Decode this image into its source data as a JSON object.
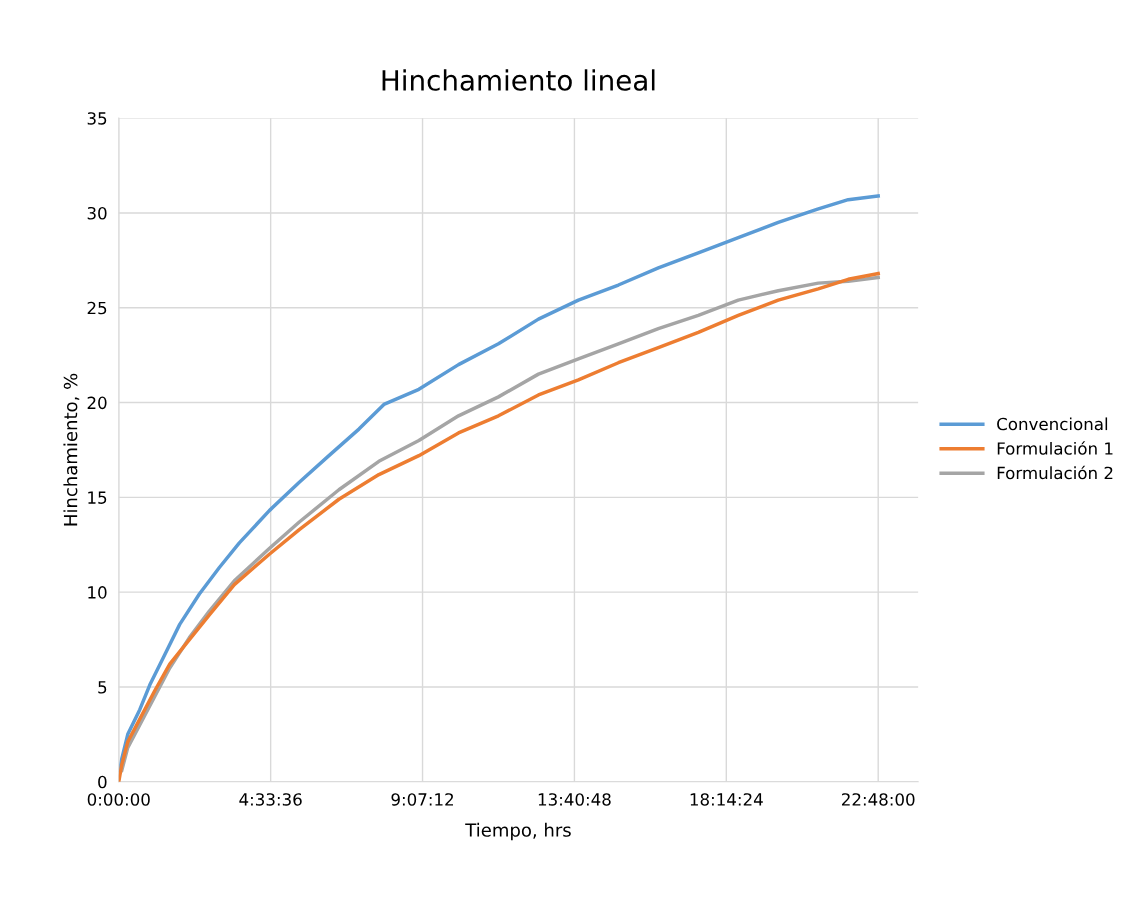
{
  "chart_data": {
    "type": "line",
    "title": "Hinchamiento lineal",
    "xlabel": "Tiempo, hrs",
    "ylabel": "Hinchamiento, %",
    "xlim": [
      0,
      24
    ],
    "xticks": [
      {
        "value": 0,
        "label": "0:00:00"
      },
      {
        "value": 4.56,
        "label": "4:33:36"
      },
      {
        "value": 9.12,
        "label": "9:07:12"
      },
      {
        "value": 13.68,
        "label": "13:40:48"
      },
      {
        "value": 18.24,
        "label": "18:14:24"
      },
      {
        "value": 22.8,
        "label": "22:48:00"
      }
    ],
    "ylim": [
      0,
      35
    ],
    "yticks": [
      0,
      5,
      10,
      15,
      20,
      25,
      30,
      35
    ],
    "grid": true,
    "legend": "right",
    "marker": "none",
    "line_style": "solid",
    "series": [
      {
        "name": "Convencional",
        "color": "#5b9bd5",
        "x": [
          0.03,
          0.09,
          0.27,
          0.63,
          0.93,
          1.38,
          1.83,
          2.42,
          3.02,
          3.62,
          4.52,
          5.42,
          6.31,
          7.21,
          7.96,
          9.01,
          10.2,
          11.4,
          12.6,
          13.8,
          15.0,
          16.2,
          17.4,
          18.6,
          19.8,
          20.98,
          21.9,
          22.8
        ],
        "values": [
          0.6,
          1.2,
          2.5,
          3.8,
          5.1,
          6.7,
          8.3,
          9.9,
          11.3,
          12.6,
          14.3,
          15.8,
          17.2,
          18.6,
          19.9,
          20.7,
          22.0,
          23.1,
          24.4,
          25.4,
          26.2,
          27.1,
          27.9,
          28.7,
          29.5,
          30.2,
          30.7,
          30.9
        ]
      },
      {
        "name": "Formulación 1",
        "color": "#ed7d31",
        "x": [
          0,
          0.09,
          0.27,
          0.63,
          1.08,
          1.53,
          2.12,
          2.72,
          3.47,
          4.52,
          5.42,
          6.61,
          7.81,
          9.01,
          10.2,
          11.4,
          12.6,
          13.8,
          15.0,
          16.2,
          17.4,
          18.6,
          19.8,
          21.0,
          21.9,
          22.8
        ],
        "values": [
          0,
          0.9,
          2.1,
          3.3,
          4.8,
          6.2,
          7.5,
          8.8,
          10.4,
          12.0,
          13.3,
          14.9,
          16.2,
          17.2,
          18.4,
          19.3,
          20.4,
          21.2,
          22.1,
          22.9,
          23.7,
          24.6,
          25.4,
          26.0,
          26.5,
          26.8
        ]
      },
      {
        "name": "Formulación 2",
        "color": "#a5a5a5",
        "x": [
          0.09,
          0.27,
          0.63,
          1.08,
          1.53,
          2.12,
          2.72,
          3.47,
          4.52,
          5.42,
          6.61,
          7.81,
          9.01,
          10.2,
          11.4,
          12.6,
          13.8,
          15.0,
          16.2,
          17.4,
          18.6,
          19.8,
          21.0,
          21.9,
          22.8
        ],
        "values": [
          0.6,
          1.8,
          3.0,
          4.5,
          6.0,
          7.6,
          9.0,
          10.6,
          12.3,
          13.7,
          15.4,
          16.9,
          18.0,
          19.3,
          20.3,
          21.5,
          22.3,
          23.1,
          23.9,
          24.6,
          25.4,
          25.9,
          26.3,
          26.4,
          26.6
        ]
      }
    ]
  }
}
